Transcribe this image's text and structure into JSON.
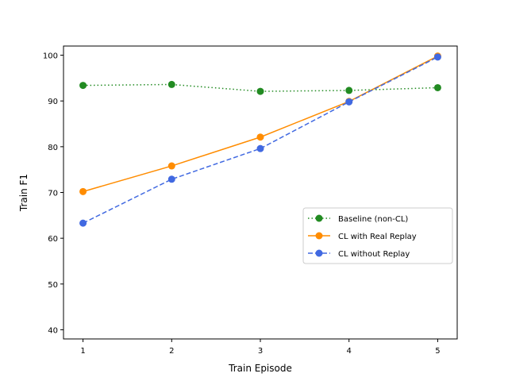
{
  "chart_data": {
    "type": "line",
    "title": "",
    "xlabel": "Train Episode",
    "ylabel": "Train F1",
    "x": [
      1,
      2,
      3,
      4,
      5
    ],
    "xlim": [
      0.78,
      5.22
    ],
    "ylim": [
      38,
      102
    ],
    "xticks": [
      1,
      2,
      3,
      4,
      5
    ],
    "yticks": [
      40,
      50,
      60,
      70,
      80,
      90,
      100
    ],
    "grid": false,
    "legend_position": "center-right",
    "series": [
      {
        "name": "Baseline (non-CL)",
        "values": [
          93.4,
          93.6,
          92.1,
          92.3,
          92.9
        ],
        "color": "#228B22",
        "dash": "dotted",
        "marker": "circle"
      },
      {
        "name": "CL with Real Replay",
        "values": [
          70.2,
          75.8,
          82.1,
          89.9,
          99.8
        ],
        "color": "#FF8C00",
        "dash": "solid",
        "marker": "circle"
      },
      {
        "name": "CL without Replay",
        "values": [
          63.3,
          72.9,
          79.6,
          89.8,
          99.6
        ],
        "color": "#4169E1",
        "dash": "dashed",
        "marker": "circle"
      }
    ]
  }
}
